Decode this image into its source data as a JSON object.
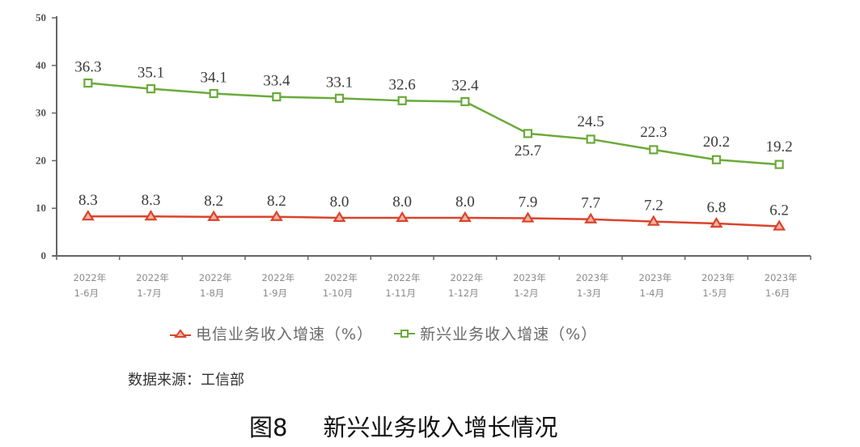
{
  "chart_data": {
    "type": "line",
    "title": "新兴业务收入增长情况",
    "figure_label": "图8",
    "xlabel": "",
    "ylabel": "",
    "ylim": [
      0,
      50
    ],
    "yticks": [
      0,
      10,
      20,
      30,
      40,
      50
    ],
    "grid": false,
    "legend_position": "bottom",
    "categories": [
      [
        "2022年",
        "1-6月"
      ],
      [
        "2022年",
        "1-7月"
      ],
      [
        "2022年",
        "1-8月"
      ],
      [
        "2022年",
        "1-9月"
      ],
      [
        "2022年",
        "1-10月"
      ],
      [
        "2022年",
        "1-11月"
      ],
      [
        "2022年",
        "1-12月"
      ],
      [
        "2023年",
        "1-2月"
      ],
      [
        "2023年",
        "1-3月"
      ],
      [
        "2023年",
        "1-4月"
      ],
      [
        "2023年",
        "1-5月"
      ],
      [
        "2023年",
        "1-6月"
      ]
    ],
    "series": [
      {
        "name": "电信业务收入增速（%）",
        "color": "#d9442b",
        "marker": "triangle",
        "values": [
          8.3,
          8.3,
          8.2,
          8.2,
          8.0,
          8.0,
          8.0,
          7.9,
          7.7,
          7.2,
          6.8,
          6.2
        ],
        "labels": [
          "8.3",
          "8.3",
          "8.2",
          "8.2",
          "8.0",
          "8.0",
          "8.0",
          "7.9",
          "7.7",
          "7.2",
          "6.8",
          "6.2"
        ]
      },
      {
        "name": "新兴业务收入增速（%）",
        "color": "#6aaa3a",
        "marker": "square",
        "values": [
          36.3,
          35.1,
          34.1,
          33.4,
          33.1,
          32.6,
          32.4,
          25.7,
          24.5,
          22.3,
          20.2,
          19.2
        ],
        "labels": [
          "36.3",
          "35.1",
          "34.1",
          "33.4",
          "33.1",
          "32.6",
          "32.4",
          "25.7",
          "24.5",
          "22.3",
          "20.2",
          "19.2"
        ]
      }
    ]
  },
  "legend": {
    "telecom": "电信业务收入增速（%）",
    "emerging": "新兴业务收入增速（%）"
  },
  "source_note": "数据来源：工信部",
  "caption": {
    "number": "图8",
    "title": "新兴业务收入增长情况"
  }
}
